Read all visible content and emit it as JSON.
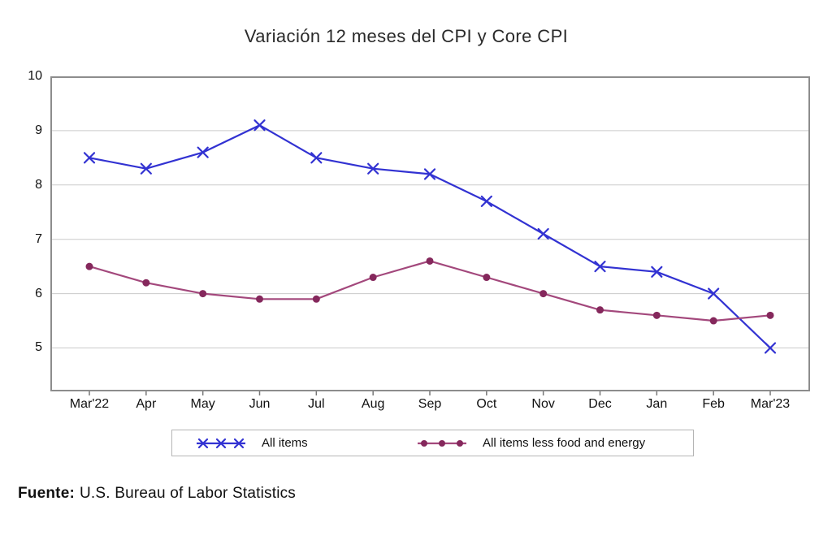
{
  "page": {
    "title": "Variación 12 meses del CPI y Core CPI"
  },
  "source": {
    "label": "Fuente:",
    "text": "U.S. Bureau of Labor Statistics"
  },
  "chart_data": {
    "type": "line",
    "title": "Variación 12 meses del CPI y Core CPI",
    "categories": [
      "Mar'22",
      "Apr",
      "May",
      "Jun",
      "Jul",
      "Aug",
      "Sep",
      "Oct",
      "Nov",
      "Dec",
      "Jan",
      "Feb",
      "Mar'23"
    ],
    "series": [
      {
        "name": "All items",
        "color": "#3232d2",
        "marker": "x",
        "marker_color": "#3232d2",
        "values": [
          8.5,
          8.3,
          8.6,
          9.1,
          8.5,
          8.3,
          8.2,
          7.7,
          7.1,
          6.5,
          6.4,
          6.0,
          5.0
        ]
      },
      {
        "name": "All items less food and energy",
        "color": "#a3487c",
        "marker": "circle",
        "marker_color": "#85285c",
        "values": [
          6.5,
          6.2,
          6.0,
          5.9,
          5.9,
          6.3,
          6.6,
          6.3,
          6.0,
          5.7,
          5.6,
          5.5,
          5.6
        ]
      }
    ],
    "xlabel": "",
    "ylabel": "",
    "ylim": [
      4.2,
      10
    ],
    "yticks": [
      10,
      9,
      8,
      7,
      6,
      5
    ],
    "grid": "horizontal",
    "legend_position": "bottom",
    "colors": {
      "grid": "#cacaca",
      "frame": "#8d8d8d",
      "tick": "#777777"
    }
  }
}
